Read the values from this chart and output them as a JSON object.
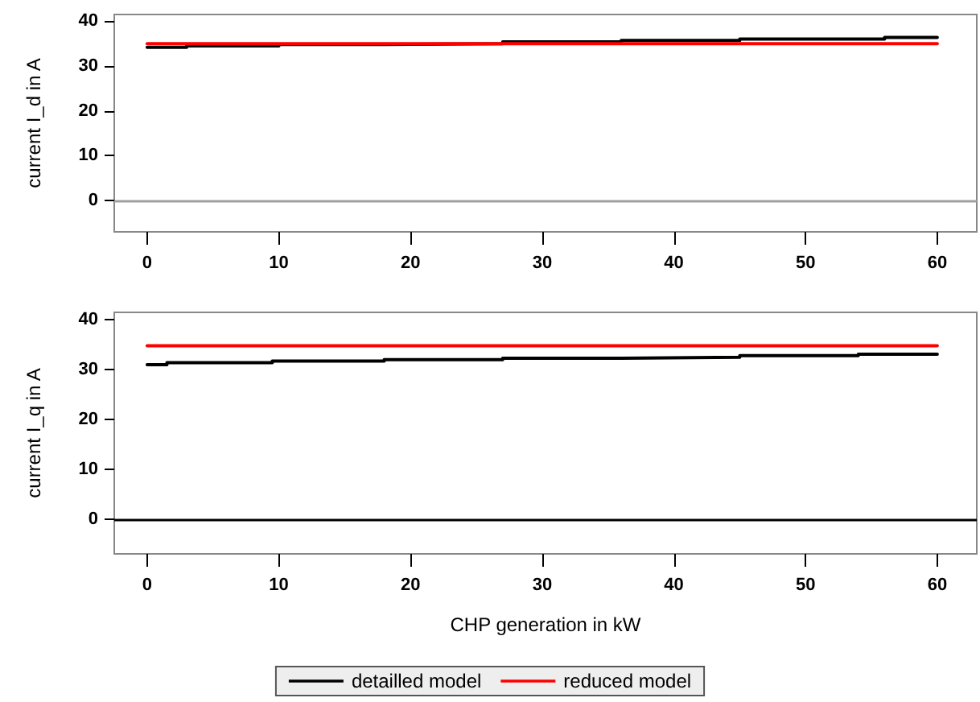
{
  "chart_data": [
    {
      "type": "step",
      "ylabel": "current I_d in A",
      "xlim": [
        -2.5,
        63
      ],
      "xticks": [
        0,
        10,
        20,
        30,
        40,
        50,
        60
      ],
      "ylim": [
        -7,
        41.5
      ],
      "yticks": [
        0,
        10,
        20,
        30,
        40
      ],
      "grid": false,
      "legend": false,
      "line_style": "solid",
      "marker": "none",
      "ref_lines": [
        {
          "axis": "y",
          "value": 0,
          "color": "#a0a0a0"
        }
      ],
      "series": [
        {
          "color": "#000000",
          "x": [
            0,
            3,
            10,
            18,
            27,
            36,
            45,
            56,
            60
          ],
          "values": [
            34.2,
            34.5,
            34.8,
            35.0,
            35.4,
            35.7,
            36.0,
            36.4,
            36.4
          ]
        },
        {
          "color": "#ff0000",
          "type": "line",
          "x": [
            0,
            60
          ],
          "values": [
            35,
            35
          ]
        }
      ]
    },
    {
      "type": "step",
      "xlabel": "CHP generation in kW",
      "ylabel": "current I_q in A",
      "xlim": [
        -2.5,
        63
      ],
      "xticks": [
        0,
        10,
        20,
        30,
        40,
        50,
        60
      ],
      "ylim": [
        -7,
        41.5
      ],
      "yticks": [
        0,
        10,
        20,
        30,
        40
      ],
      "grid": false,
      "legend": "bottom",
      "line_style": "solid",
      "marker": "none",
      "ref_lines": [
        {
          "axis": "y",
          "value": 0,
          "color": "#000000"
        }
      ],
      "series": [
        {
          "name": "detailled model",
          "color": "#000000",
          "x": [
            0,
            1.5,
            9.5,
            18,
            27,
            36,
            45,
            54,
            60
          ],
          "values": [
            31.0,
            31.4,
            31.7,
            32.0,
            32.3,
            32.5,
            32.8,
            33.1,
            33.1
          ]
        },
        {
          "name": "reduced model",
          "color": "#ff0000",
          "type": "line",
          "x": [
            0,
            60
          ],
          "values": [
            34.8,
            34.8
          ]
        }
      ]
    }
  ]
}
